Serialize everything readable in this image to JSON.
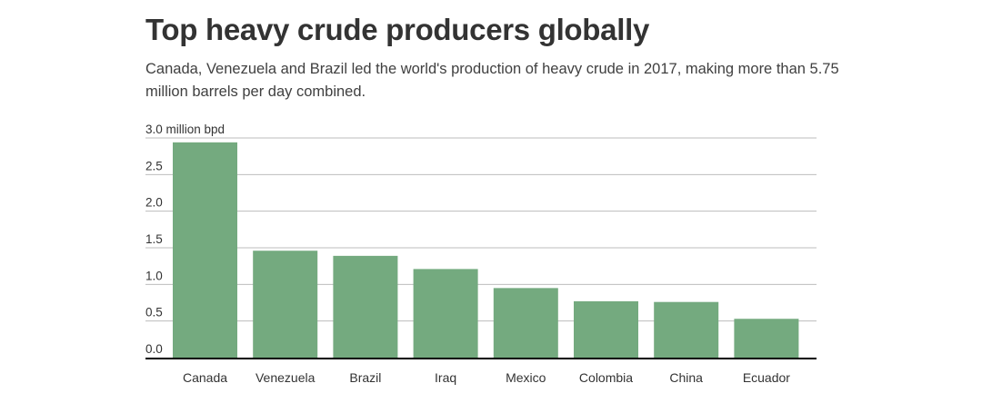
{
  "title": "Top heavy crude producers globally",
  "subtitle": "Canada, Venezuela and Brazil led the world's production of heavy crude in 2017, making more than 5.75 million barrels per day combined.",
  "chart_data": {
    "type": "bar",
    "title": "Top heavy crude producers globally",
    "subtitle": "Canada, Venezuela and Brazil led the world's production of heavy crude in 2017, making more than 5.75 million barrels per day combined.",
    "categories": [
      "Canada",
      "Venezuela",
      "Brazil",
      "Iraq",
      "Mexico",
      "Colombia",
      "China",
      "Ecuador"
    ],
    "values": [
      2.94,
      1.46,
      1.39,
      1.21,
      0.95,
      0.77,
      0.76,
      0.53
    ],
    "ylim": [
      0,
      3.0
    ],
    "yticks": [
      {
        "value": 0,
        "label": "0.0"
      },
      {
        "value": 0.5,
        "label": "0.5"
      },
      {
        "value": 1.0,
        "label": "1.0"
      },
      {
        "value": 1.5,
        "label": "1.5"
      },
      {
        "value": 2.0,
        "label": "2.0"
      },
      {
        "value": 2.5,
        "label": "2.5"
      },
      {
        "value": 3.0,
        "label": "3.0 million bpd"
      }
    ],
    "xlabel": "",
    "ylabel": "",
    "grid": true,
    "bar_color": "#74aa7f",
    "grid_color": "#bdbdbd",
    "baseline_color": "#000000"
  }
}
